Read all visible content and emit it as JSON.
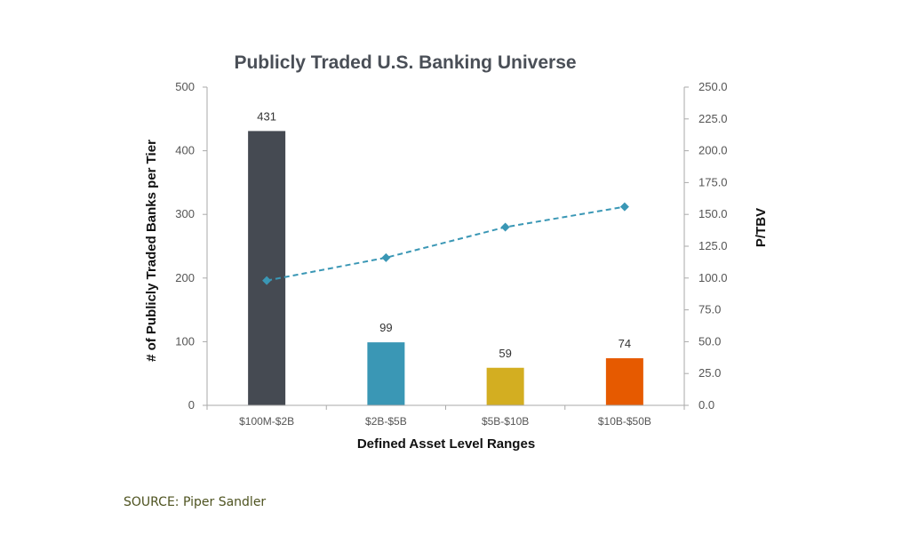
{
  "source": "SOURCE: Piper Sandler",
  "chart_data": {
    "type": "bar",
    "title": "Publicly Traded U.S. Banking Universe",
    "xlabel": "Defined Asset Level Ranges",
    "ylabel": "# of Publicly Traded Banks per Tier",
    "y2label": "P/TBV",
    "categories": [
      "$100M-$2B",
      "$2B-$5B",
      "$5B-$10B",
      "$10B-$50B"
    ],
    "bar_values": [
      431,
      99,
      59,
      74
    ],
    "bar_labels": [
      "431",
      "99",
      "59",
      "74"
    ],
    "bar_colors": [
      "#454a52",
      "#3a97b5",
      "#d3ae21",
      "#e65a00"
    ],
    "line_values": [
      98,
      116,
      140,
      156
    ],
    "line_color": "#3a97b5",
    "ylim": [
      0,
      500
    ],
    "yticks": [
      "0",
      "100",
      "200",
      "300",
      "400",
      "500"
    ],
    "y2lim": [
      0,
      250
    ],
    "y2ticks": [
      "0.0",
      "25.0",
      "50.0",
      "75.0",
      "100.0",
      "125.0",
      "150.0",
      "175.0",
      "200.0",
      "225.0",
      "250.0"
    ],
    "grid": false,
    "legend": "none"
  }
}
